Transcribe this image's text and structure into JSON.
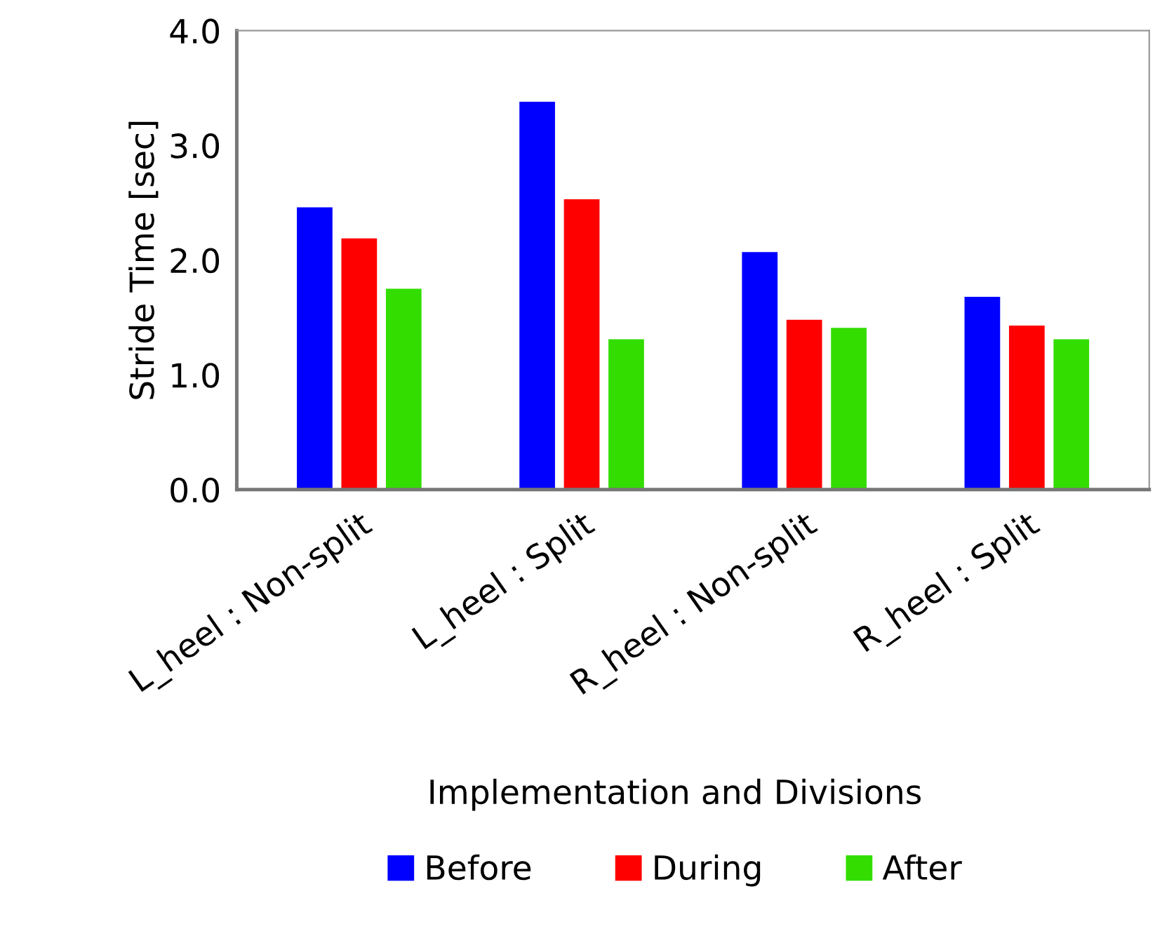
{
  "chart_data": {
    "type": "bar",
    "xlabel": "Implementation and Divisions",
    "ylabel": "Stride Time [sec]",
    "categories": [
      "L_heel : Non-split",
      "L_heel : Split",
      "R_heel : Non-split",
      "R_heel : Split"
    ],
    "series": [
      {
        "name": "Before",
        "color": "#0000ff",
        "values": [
          2.46,
          3.38,
          2.07,
          1.68
        ]
      },
      {
        "name": "During",
        "color": "#ff0000",
        "values": [
          2.19,
          2.53,
          1.48,
          1.43
        ]
      },
      {
        "name": "After",
        "color": "#33dd00",
        "values": [
          1.75,
          1.31,
          1.41,
          1.31
        ]
      }
    ],
    "ylim": [
      0,
      4
    ],
    "yticks": [
      {
        "value": 0,
        "label": "0.0"
      },
      {
        "value": 1,
        "label": "1.0"
      },
      {
        "value": 2,
        "label": "2.0"
      },
      {
        "value": 3,
        "label": "3.0"
      },
      {
        "value": 4,
        "label": "4.0"
      }
    ],
    "grid": false,
    "legend": "bottom"
  }
}
